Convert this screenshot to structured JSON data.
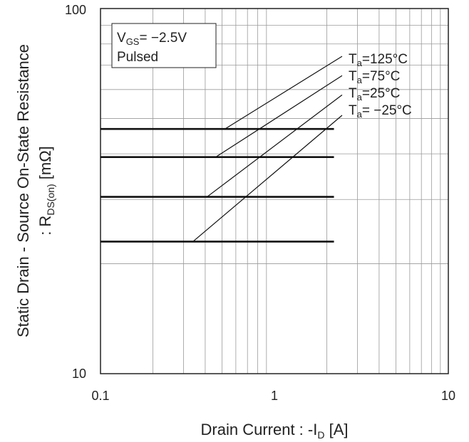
{
  "chart_data": {
    "type": "line",
    "xlabel": {
      "main": "Drain Current : -I",
      "sub": "D",
      "unit": " [A]"
    },
    "ylabel": {
      "line1": "Static Drain - Source On-State Resistance",
      "line2_prefix": ": R",
      "line2_sub": "DS(on)",
      "line2_unit": " [mΩ]"
    },
    "x_scale": "log",
    "y_scale": "log",
    "xlim": [
      0.1,
      10
    ],
    "ylim": [
      10,
      100
    ],
    "x_ticks": [
      "0.1",
      "1",
      "10"
    ],
    "y_ticks": [
      "10",
      "100"
    ],
    "grid": true,
    "conditions": {
      "vgs_label": "V",
      "vgs_sub": "GS",
      "vgs_value": "= −2.5V",
      "mode": "Pulsed"
    },
    "series": [
      {
        "name_main": "T",
        "name_sub": "a",
        "name_rest": "=125°C",
        "x": [
          0.1,
          0.52,
          2.2,
          2.45
        ],
        "y": [
          46.8,
          46.8,
          46.8,
          74.0
        ]
      },
      {
        "name_main": "T",
        "name_sub": "a",
        "name_rest": "=75°C",
        "x": [
          0.1,
          0.46,
          2.2,
          2.45
        ],
        "y": [
          39.2,
          39.2,
          39.2,
          65.5
        ]
      },
      {
        "name_main": "T",
        "name_sub": "a",
        "name_rest": "=25°C",
        "x": [
          0.1,
          0.41,
          2.2,
          2.45
        ],
        "y": [
          30.5,
          30.5,
          30.5,
          58.0
        ]
      },
      {
        "name_main": "T",
        "name_sub": "a",
        "name_rest": "= −25°C",
        "x": [
          0.1,
          0.34,
          2.2,
          2.45
        ],
        "y": [
          23.0,
          23.0,
          23.0,
          51.0
        ]
      }
    ]
  }
}
